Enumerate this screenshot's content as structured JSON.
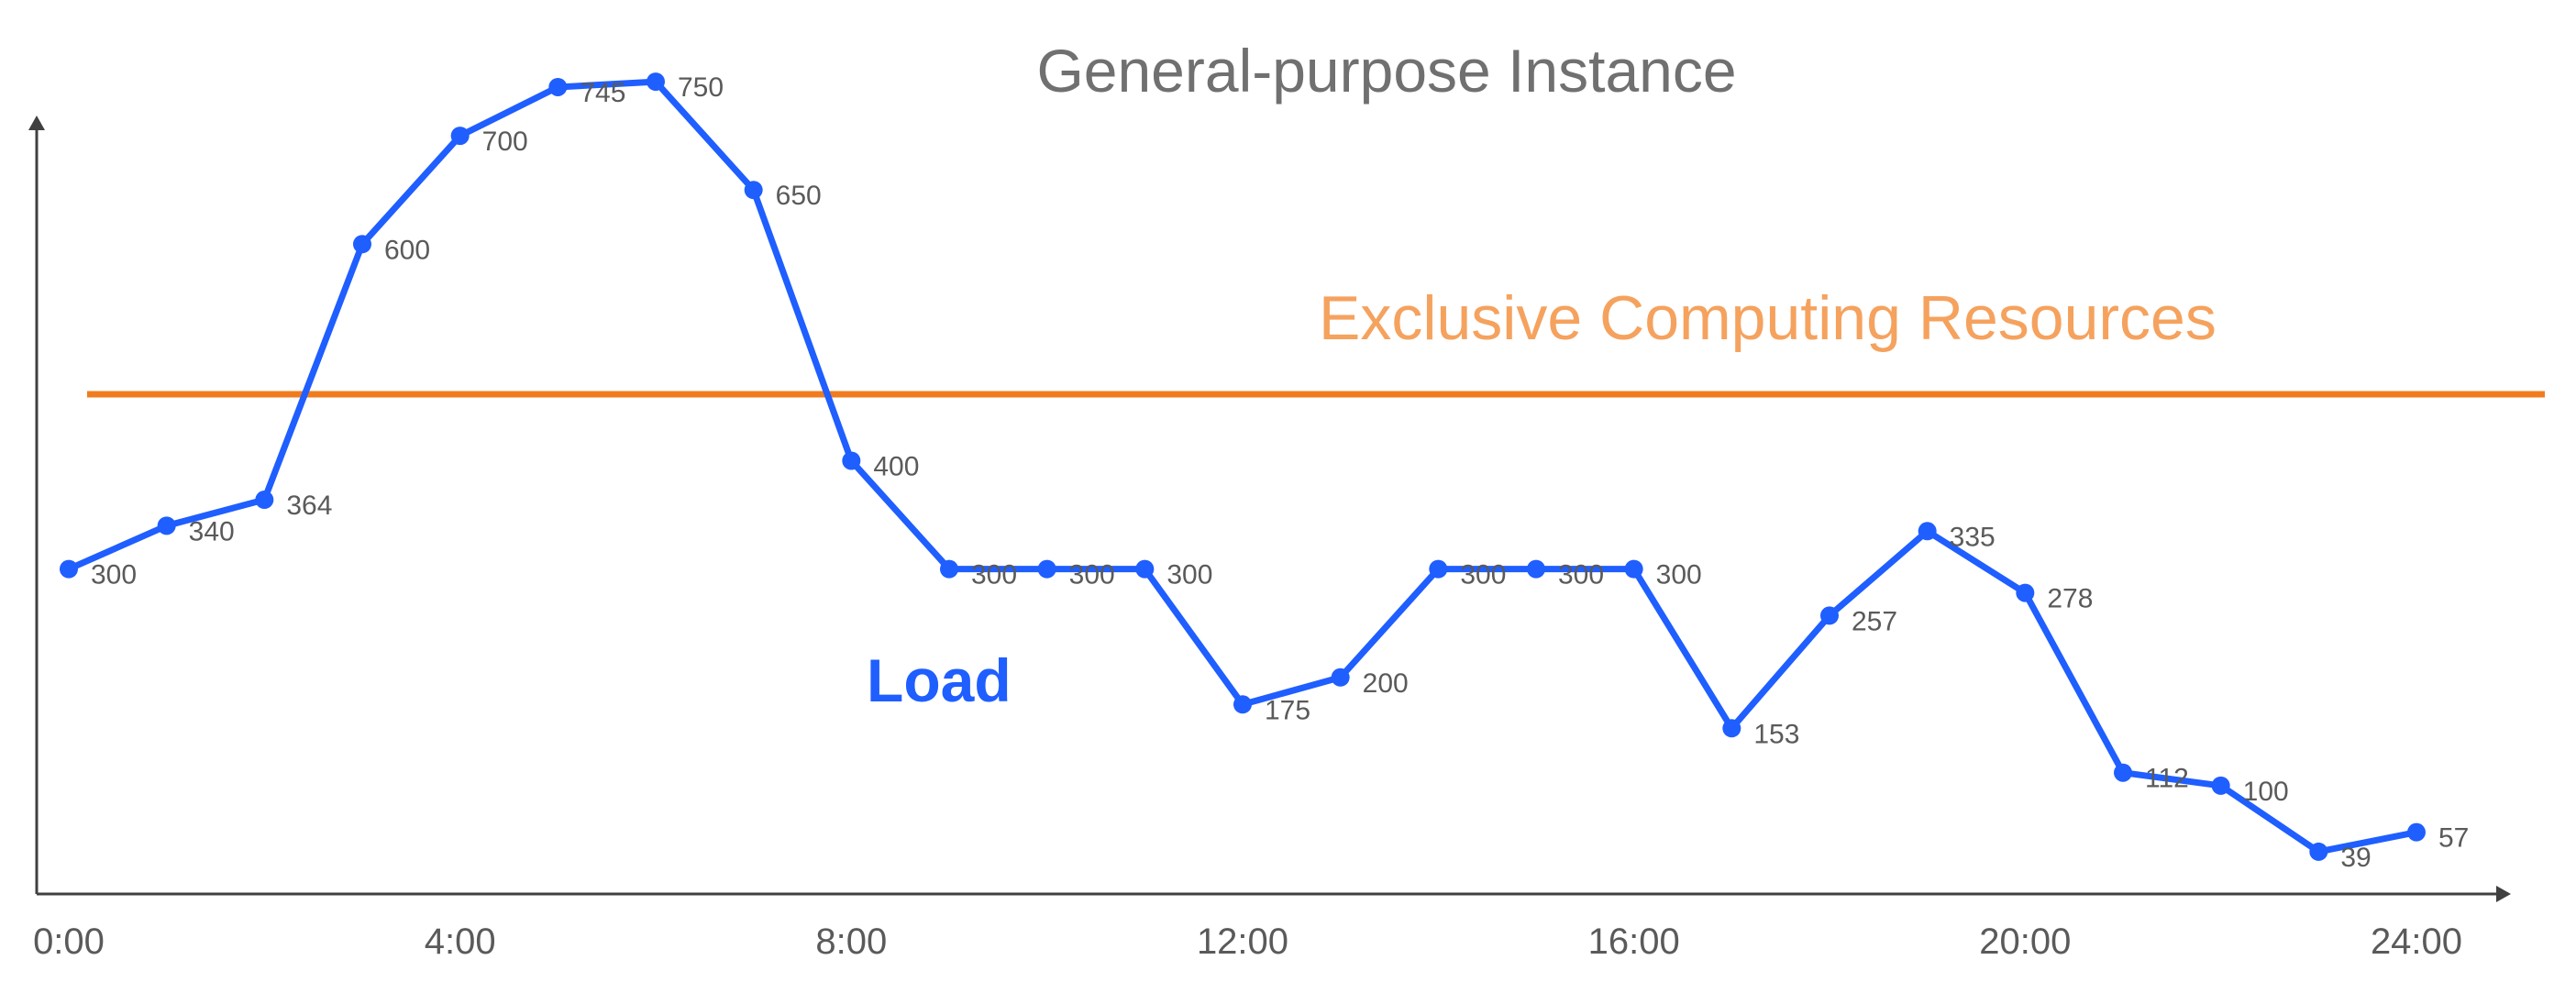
{
  "chart_data": {
    "type": "line",
    "title": "General-purpose Instance",
    "x_tick_labels": [
      "0:00",
      "4:00",
      "8:00",
      "12:00",
      "16:00",
      "20:00",
      "24:00"
    ],
    "x_range": [
      0,
      24
    ],
    "ylim": [
      0,
      800
    ],
    "grid": false,
    "legend": "none",
    "series": [
      {
        "name": "Load",
        "color": "#1f5eff",
        "x": [
          0,
          1,
          2,
          3,
          4,
          5,
          6,
          7,
          8,
          9,
          10,
          11,
          12,
          13,
          14,
          15,
          16,
          17,
          18,
          19,
          20,
          21,
          22,
          23,
          24
        ],
        "values": [
          300,
          340,
          364,
          600,
          700,
          745,
          750,
          650,
          400,
          300,
          300,
          300,
          175,
          200,
          300,
          300,
          300,
          153,
          257,
          335,
          278,
          112,
          100,
          39,
          57
        ]
      }
    ],
    "reference_line": {
      "label": "Exclusive Computing Resources",
      "color": "#f07c1f",
      "label_color": "#f5a25e"
    }
  }
}
